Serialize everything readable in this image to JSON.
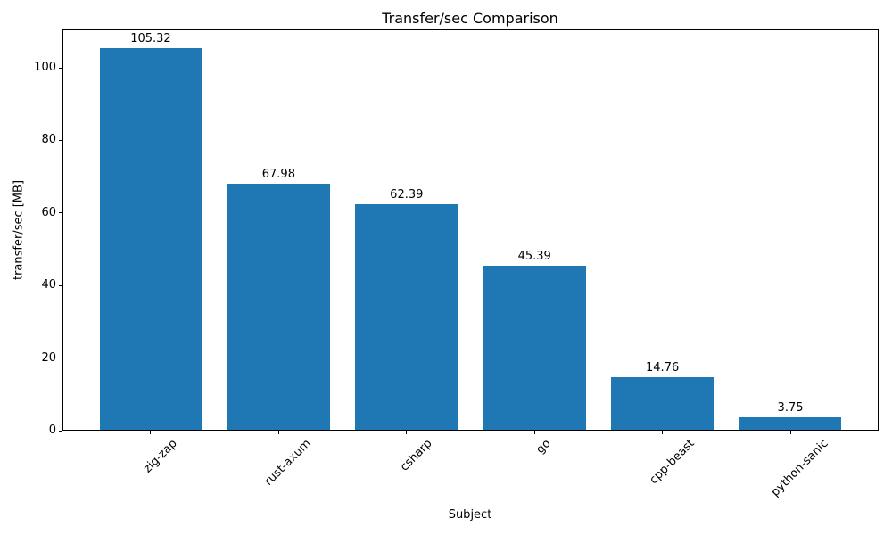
{
  "chart_data": {
    "type": "bar",
    "title": "Transfer/sec Comparison",
    "xlabel": "Subject",
    "ylabel": "transfer/sec [MB]",
    "categories": [
      "zig-zap",
      "rust-axum",
      "csharp",
      "go",
      "cpp-beast",
      "python-sanic"
    ],
    "values": [
      105.32,
      67.98,
      62.39,
      45.39,
      14.76,
      3.75
    ],
    "bar_labels": [
      "105.32",
      "67.98",
      "62.39",
      "45.39",
      "14.76",
      "3.75"
    ],
    "bar_color": "#1f77b4",
    "text_color": "#000000",
    "background_color": "#ffffff",
    "axis_color": "#000000",
    "ylim": [
      0,
      110.59
    ],
    "yticks": [
      0,
      20,
      40,
      60,
      80,
      100
    ],
    "xlim": [
      -0.69,
      5.69
    ],
    "bar_width": 0.8,
    "x_tick_rotation_deg": 45,
    "grid": false,
    "legend": null
  }
}
